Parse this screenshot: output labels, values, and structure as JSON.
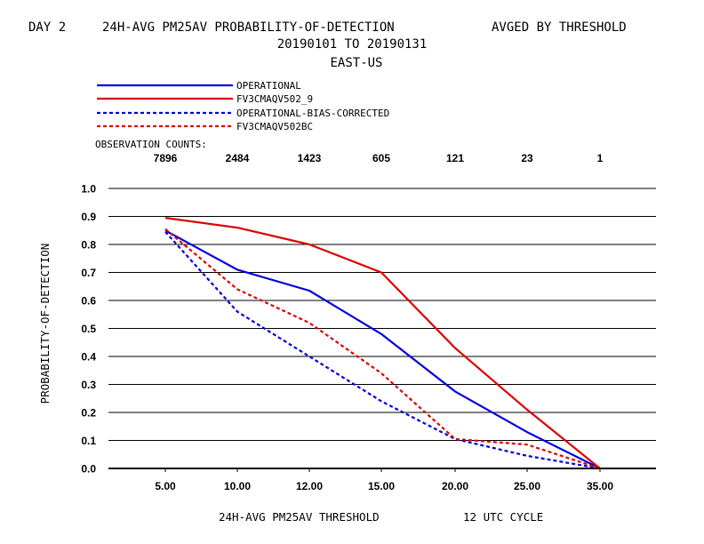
{
  "header": {
    "left": "DAY 2",
    "title": "24H-AVG PM25AV PROBABILITY-OF-DETECTION",
    "right": "AVGED BY THRESHOLD",
    "date_range": "20190101 TO 20190131",
    "region": "EAST-US"
  },
  "counts_label": "OBSERVATION COUNTS:",
  "chart_data": {
    "type": "line",
    "x_labels": [
      "5.00",
      "10.00",
      "12.00",
      "15.00",
      "20.00",
      "25.00",
      "35.00"
    ],
    "observation_counts": [
      "7896",
      "2484",
      "1423",
      "605",
      "121",
      "23",
      "1"
    ],
    "ylabel": "PROBABILITY-OF-DETECTION",
    "xlabel": "24H-AVG PM25AV THRESHOLD",
    "cycle_label": "12 UTC CYCLE",
    "ylim": [
      0.0,
      1.0
    ],
    "yticks": [
      "0.0",
      "0.1",
      "0.2",
      "0.3",
      "0.4",
      "0.5",
      "0.6",
      "0.7",
      "0.8",
      "0.9",
      "1.0"
    ],
    "grid": true,
    "legend_position": "top-left",
    "series": [
      {
        "name": "OPERATIONAL",
        "color": "#0000dd",
        "dashed": false,
        "values": [
          0.85,
          0.71,
          0.635,
          0.48,
          0.275,
          0.13,
          0.0
        ]
      },
      {
        "name": "FV3CMAQV502_9",
        "color": "#dd0000",
        "dashed": false,
        "values": [
          0.895,
          0.86,
          0.8,
          0.7,
          0.43,
          0.21,
          0.0
        ]
      },
      {
        "name": "OPERATIONAL-BIAS-CORRECTED",
        "color": "#0000dd",
        "dashed": true,
        "values": [
          0.845,
          0.56,
          0.4,
          0.24,
          0.105,
          0.045,
          0.0
        ]
      },
      {
        "name": "FV3CMAQV502BC",
        "color": "#dd0000",
        "dashed": true,
        "values": [
          0.855,
          0.64,
          0.52,
          0.34,
          0.105,
          0.085,
          0.0
        ]
      }
    ]
  }
}
